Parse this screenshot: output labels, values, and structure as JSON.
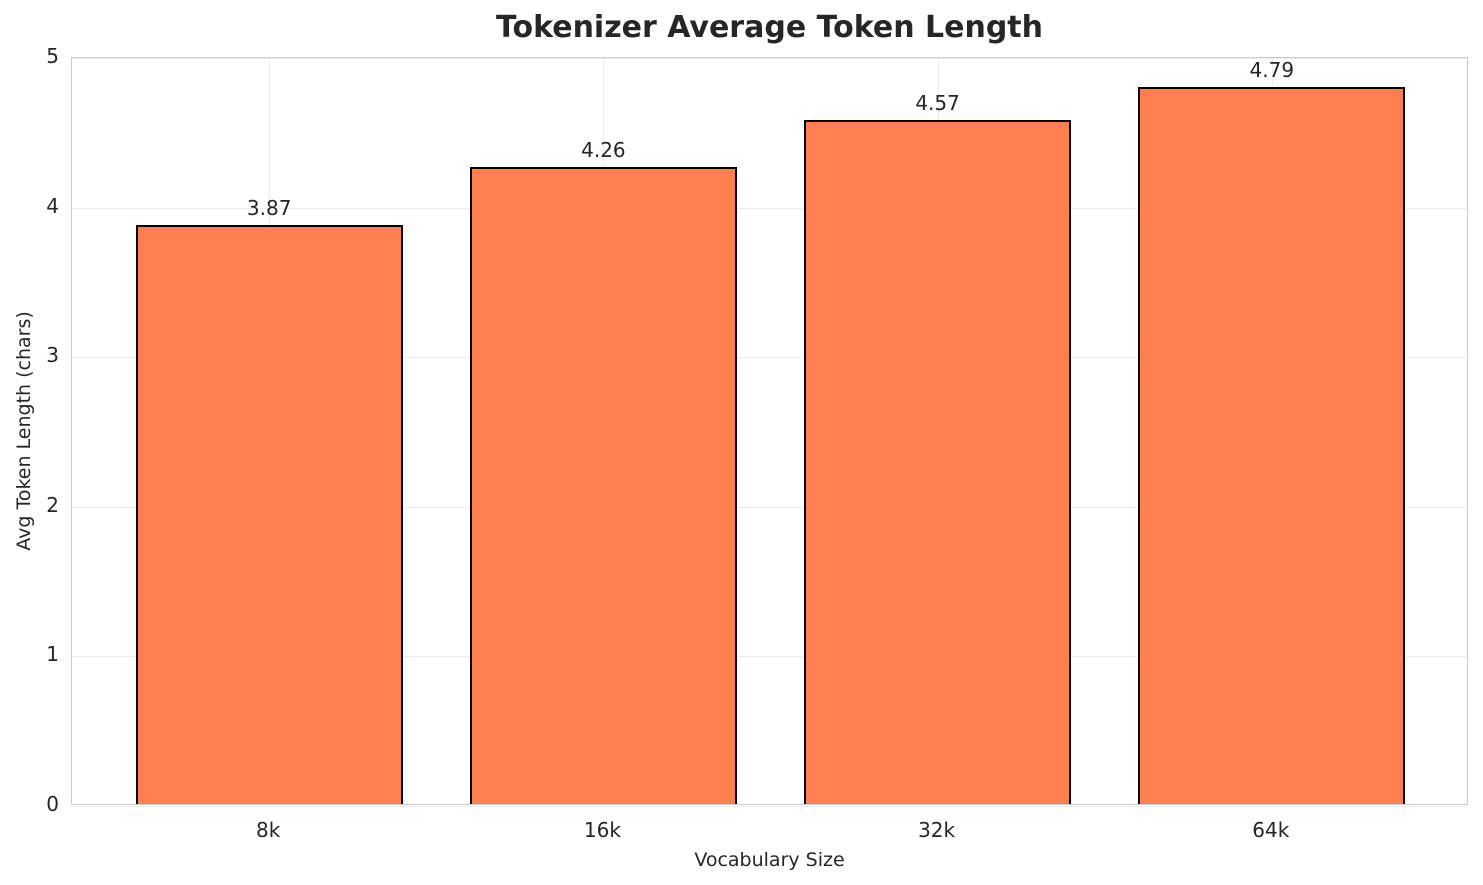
{
  "chart_data": {
    "type": "bar",
    "title": "Tokenizer Average Token Length",
    "xlabel": "Vocabulary Size",
    "ylabel": "Avg Token Length (chars)",
    "categories": [
      "8k",
      "16k",
      "32k",
      "64k"
    ],
    "values": [
      3.87,
      4.26,
      4.57,
      4.79
    ],
    "value_labels": [
      "3.87",
      "4.26",
      "4.57",
      "4.79"
    ],
    "yticks": [
      0,
      1,
      2,
      3,
      4,
      5
    ],
    "ylim": [
      0,
      5
    ],
    "xlim": [
      -0.59,
      3.59
    ],
    "bar_width": 0.8,
    "grid": "light gray horizontal lines at integer ticks and vertical lines at category centers",
    "legend": "none",
    "colors": {
      "bar_fill": "#FF7F50",
      "bar_edge": "#000000",
      "grid": "#ececec",
      "spine": "#cccccc",
      "text": "#262626",
      "background": "#ffffff"
    }
  }
}
